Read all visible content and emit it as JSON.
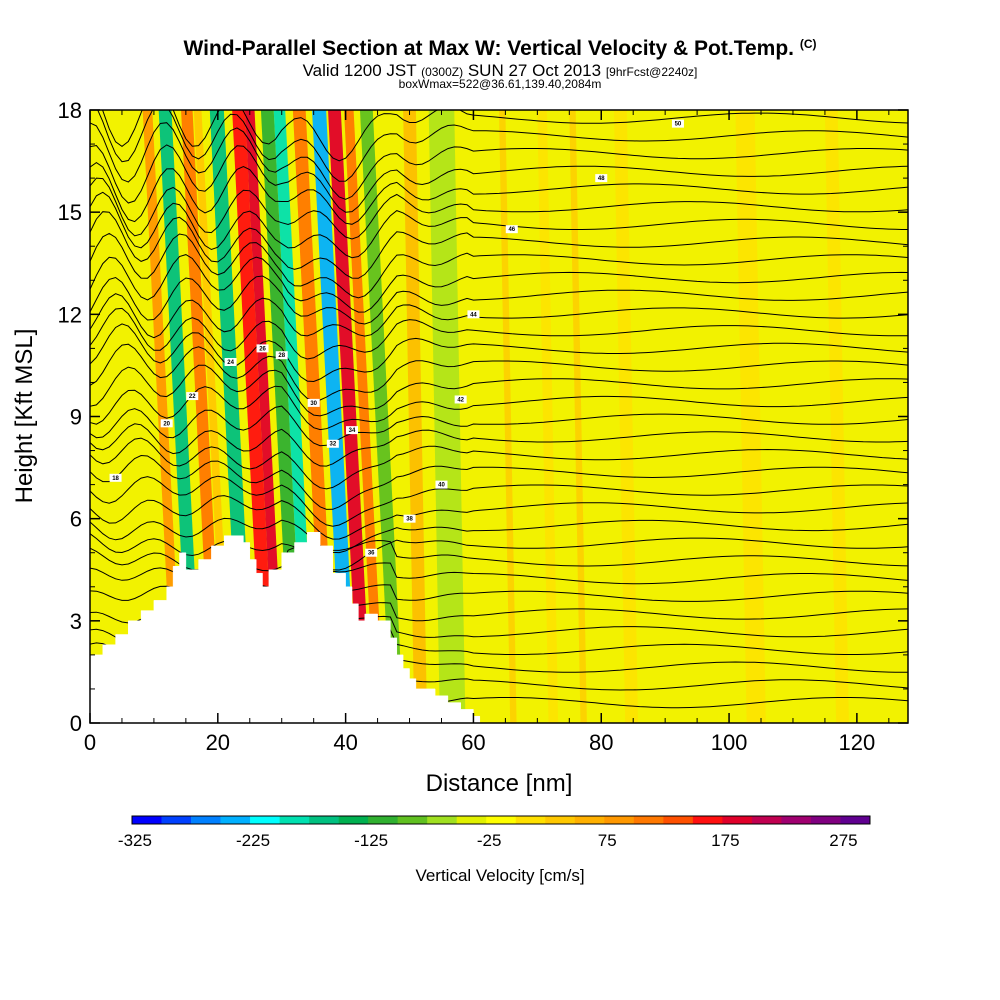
{
  "chart_data": {
    "type": "heatmap",
    "title": "Wind-Parallel Section at Max W: Vertical Velocity & Pot.Temp.",
    "title_suffix": "(C)",
    "subtitle_main": "Valid 1200 JST",
    "subtitle_utc": "(0300Z)",
    "subtitle_date": "SUN 27 Oct 2013",
    "subtitle_fcst": "[9hrFcst@2240z]",
    "subtitle2": "boxWmax=522@36.61,139.40,2084m",
    "xlabel": "Distance [nm]",
    "ylabel": "Height [Kft MSL]",
    "xlim": [
      0,
      128
    ],
    "ylim": [
      0,
      18
    ],
    "x_ticks": [
      "0",
      "20",
      "40",
      "60",
      "80",
      "100",
      "120"
    ],
    "y_ticks": [
      "0",
      "3",
      "6",
      "9",
      "12",
      "15",
      "18"
    ],
    "colorbar": {
      "label": "Vertical Velocity [cm/s]",
      "tick_labels": [
        "-325",
        "-225",
        "-125",
        "-25",
        "75",
        "175",
        "275"
      ],
      "colors": [
        "#0000ff",
        "#0040ff",
        "#0080ff",
        "#00b0ff",
        "#00ffff",
        "#00e0b0",
        "#00c080",
        "#00b050",
        "#30b030",
        "#60c020",
        "#a0e020",
        "#e0f000",
        "#ffff00",
        "#ffe000",
        "#ffc800",
        "#ffb000",
        "#ff9800",
        "#ff7800",
        "#ff5000",
        "#ff1010",
        "#e0002a",
        "#c00050",
        "#a00070",
        "#800080",
        "#600090"
      ]
    },
    "velocity_bands": [
      {
        "x": 11,
        "w": 1.5,
        "color": "#ff9800"
      },
      {
        "x": 13.5,
        "w": 2,
        "color": "#00c080"
      },
      {
        "x": 17,
        "w": 1.8,
        "color": "#ff7800"
      },
      {
        "x": 19,
        "w": 1.2,
        "color": "#ffc800"
      },
      {
        "x": 21.5,
        "w": 2.2,
        "color": "#00c080"
      },
      {
        "x": 25,
        "w": 2,
        "color": "#ff1010"
      },
      {
        "x": 27,
        "w": 1.5,
        "color": "#e0002a"
      },
      {
        "x": 29.5,
        "w": 2,
        "color": "#30b030"
      },
      {
        "x": 31.5,
        "w": 1.8,
        "color": "#00e0b0"
      },
      {
        "x": 34.5,
        "w": 2,
        "color": "#ff7800"
      },
      {
        "x": 37.5,
        "w": 2.2,
        "color": "#00b0ff"
      },
      {
        "x": 40,
        "w": 2,
        "color": "#e0002a"
      },
      {
        "x": 42.5,
        "w": 1.5,
        "color": "#ff7800"
      },
      {
        "x": 45,
        "w": 2,
        "color": "#60c020"
      },
      {
        "x": 50,
        "w": 2,
        "color": "#ffb000"
      },
      {
        "x": 54,
        "w": 4,
        "color": "#a0e020"
      },
      {
        "x": 65,
        "w": 1,
        "color": "#ffc800"
      },
      {
        "x": 71,
        "w": 1.5,
        "color": "#ffe000"
      },
      {
        "x": 76,
        "w": 1,
        "color": "#ffc800"
      },
      {
        "x": 83,
        "w": 2,
        "color": "#ffe000"
      },
      {
        "x": 102,
        "w": 3,
        "color": "#ffe000"
      },
      {
        "x": 116,
        "w": 2,
        "color": "#ffe000"
      }
    ],
    "terrain": [
      [
        0,
        2
      ],
      [
        2,
        2
      ],
      [
        2,
        2.3
      ],
      [
        4,
        2.3
      ],
      [
        4,
        2.6
      ],
      [
        6,
        2.6
      ],
      [
        6,
        3
      ],
      [
        8,
        3
      ],
      [
        8,
        3.3
      ],
      [
        10,
        3.3
      ],
      [
        10,
        3.6
      ],
      [
        12,
        3.6
      ],
      [
        12,
        4
      ],
      [
        13,
        4
      ],
      [
        13,
        4.6
      ],
      [
        14,
        4.6
      ],
      [
        14,
        5
      ],
      [
        15,
        5
      ],
      [
        15,
        4.5
      ],
      [
        17,
        4.5
      ],
      [
        17,
        4.8
      ],
      [
        19,
        4.8
      ],
      [
        19,
        5.2
      ],
      [
        21,
        5.2
      ],
      [
        21,
        5.5
      ],
      [
        24,
        5.5
      ],
      [
        24,
        5.3
      ],
      [
        25,
        5.3
      ],
      [
        25,
        4.8
      ],
      [
        26,
        4.8
      ],
      [
        26,
        4.4
      ],
      [
        27,
        4.4
      ],
      [
        27,
        4
      ],
      [
        28,
        4
      ],
      [
        28,
        4.5
      ],
      [
        30,
        4.5
      ],
      [
        30,
        5
      ],
      [
        32,
        5
      ],
      [
        32,
        5.3
      ],
      [
        34,
        5.3
      ],
      [
        34,
        5.6
      ],
      [
        36,
        5.6
      ],
      [
        36,
        5.2
      ],
      [
        38,
        5.2
      ],
      [
        38,
        4.4
      ],
      [
        40,
        4.4
      ],
      [
        40,
        4
      ],
      [
        41,
        4
      ],
      [
        41,
        3.5
      ],
      [
        42,
        3.5
      ],
      [
        42,
        3
      ],
      [
        43,
        3
      ],
      [
        43,
        3.2
      ],
      [
        45,
        3.2
      ],
      [
        45,
        3
      ],
      [
        47,
        3
      ],
      [
        47,
        2.5
      ],
      [
        48,
        2.5
      ],
      [
        48,
        2
      ],
      [
        49,
        2
      ],
      [
        49,
        1.6
      ],
      [
        50,
        1.6
      ],
      [
        50,
        1.3
      ],
      [
        51,
        1.3
      ],
      [
        51,
        1
      ],
      [
        54,
        1
      ],
      [
        54,
        0.8
      ],
      [
        56,
        0.8
      ],
      [
        56,
        0.6
      ],
      [
        58,
        0.6
      ],
      [
        58,
        0.4
      ],
      [
        60,
        0.4
      ],
      [
        60,
        0.2
      ],
      [
        61,
        0.2
      ],
      [
        61,
        0
      ]
    ],
    "isotherm_labels": [
      "18",
      "20",
      "22",
      "24",
      "26",
      "28",
      "30",
      "32",
      "34",
      "36",
      "38",
      "40",
      "42",
      "44",
      "46",
      "48",
      "50"
    ]
  }
}
